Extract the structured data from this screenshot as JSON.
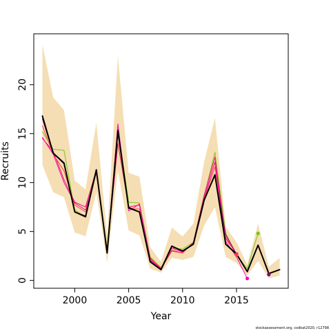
{
  "chart_data": {
    "type": "line",
    "title": "",
    "xlabel": "Year",
    "ylabel": "Recruits",
    "xlim": [
      1996.2,
      2019.8
    ],
    "ylim": [
      -0.8,
      25.2
    ],
    "x_ticks": [
      2000,
      2005,
      2010,
      2015
    ],
    "y_ticks": [
      0,
      5,
      10,
      15,
      20
    ],
    "grid": false,
    "legend": "none",
    "band": {
      "color": "#F5DEB3",
      "x": [
        1997,
        1998,
        1999,
        2000,
        2001,
        2002,
        2003,
        2004,
        2005,
        2006,
        2007,
        2008,
        2009,
        2010,
        2011,
        2012,
        2013,
        2014,
        2015,
        2016,
        2017,
        2018,
        2019
      ],
      "lower": [
        11.8,
        9.0,
        8.5,
        4.9,
        4.5,
        9.0,
        1.8,
        11.2,
        5.1,
        4.6,
        1.2,
        0.8,
        2.3,
        2.1,
        2.4,
        5.6,
        7.5,
        2.4,
        1.8,
        0.5,
        2.0,
        0.2,
        0.5
      ],
      "upper": [
        24.1,
        18.7,
        17.4,
        10.2,
        9.3,
        16.1,
        4.6,
        22.9,
        11.0,
        10.6,
        3.4,
        1.9,
        5.4,
        4.5,
        5.8,
        12.1,
        16.6,
        5.5,
        3.9,
        1.6,
        5.8,
        1.4,
        2.3
      ]
    },
    "series": [
      {
        "color": "#000000",
        "width": 2,
        "x": [
          1997,
          1998,
          1999,
          2000,
          2001,
          2002,
          2003,
          2004,
          2005,
          2006,
          2007,
          2008,
          2009,
          2010,
          2011,
          2012,
          2013,
          2014,
          2015,
          2016,
          2017,
          2018,
          2019
        ],
        "values": [
          16.8,
          13.0,
          12.0,
          7.0,
          6.5,
          11.3,
          2.8,
          15.3,
          7.4,
          7.0,
          1.9,
          1.1,
          3.5,
          3.0,
          3.7,
          8.2,
          10.8,
          3.7,
          2.7,
          0.9,
          3.6,
          0.7,
          1.1
        ]
      },
      {
        "color": "#7FC31C",
        "width": 1,
        "x": [
          1997,
          1998,
          1999,
          2000,
          2001,
          2002,
          2003,
          2004,
          2005,
          2006,
          2007,
          2008,
          2009,
          2010,
          2011,
          2012,
          2013,
          2014,
          2015,
          2016,
          2017
        ],
        "values": [
          15.2,
          13.4,
          13.3,
          7.2,
          6.5,
          11.0,
          3.3,
          15.6,
          8.0,
          7.9,
          2.4,
          1.3,
          3.3,
          3.2,
          3.9,
          8.6,
          13.1,
          4.8,
          2.6,
          1.2,
          4.8
        ],
        "endpoint": true
      },
      {
        "color": "#E0115F",
        "width": 1,
        "x": [
          1997,
          1998,
          1999,
          2000,
          2001,
          2002,
          2003,
          2004,
          2005,
          2006,
          2007,
          2008,
          2009,
          2010,
          2011,
          2012,
          2013,
          2014,
          2015
        ],
        "values": [
          14.5,
          13.2,
          10.3,
          8.0,
          7.5,
          11.3,
          3.0,
          14.0,
          7.5,
          7.7,
          2.3,
          1.2,
          3.0,
          2.8,
          3.9,
          8.7,
          12.6,
          4.3,
          2.7
        ],
        "endpoint": true
      },
      {
        "color": "#FF4040",
        "width": 1,
        "x": [
          1997,
          1998,
          1999,
          2000,
          2001,
          2002,
          2003,
          2004,
          2005,
          2006,
          2007,
          2008,
          2009,
          2010,
          2011,
          2012,
          2013,
          2014,
          2015
        ],
        "values": [
          15.8,
          12.9,
          11.2,
          7.7,
          7.0,
          11.2,
          3.1,
          15.0,
          7.3,
          7.3,
          2.2,
          1.3,
          3.1,
          2.8,
          3.8,
          8.3,
          11.6,
          4.5,
          2.6
        ],
        "endpoint": true
      },
      {
        "color": "#FF00B0",
        "width": 1,
        "x": [
          1997,
          1998,
          1999,
          2000,
          2001,
          2002,
          2003,
          2004,
          2005,
          2006,
          2007,
          2008,
          2009,
          2010,
          2011,
          2012,
          2013,
          2014,
          2015,
          2016
        ],
        "values": [
          14.6,
          12.9,
          10.0,
          7.9,
          7.2,
          11.0,
          3.0,
          16.0,
          7.1,
          7.8,
          2.1,
          1.2,
          3.3,
          2.9,
          3.8,
          8.4,
          12.1,
          4.0,
          2.4,
          0.2
        ],
        "endpoint": true
      },
      {
        "color": "#800080",
        "width": 1,
        "x": [
          1997,
          1998,
          1999,
          2000,
          2001,
          2002,
          2003,
          2004,
          2005,
          2006,
          2007,
          2008,
          2009,
          2010,
          2011,
          2012,
          2013,
          2014,
          2015,
          2016,
          2017,
          2018
        ],
        "values": [
          16.5,
          13.0,
          11.9,
          7.0,
          6.6,
          11.3,
          2.8,
          15.4,
          7.5,
          7.0,
          2.0,
          1.1,
          3.5,
          3.0,
          3.7,
          8.2,
          10.7,
          4.7,
          2.7,
          0.9,
          3.6,
          0.6
        ],
        "endpoint": true
      }
    ]
  },
  "footer": {
    "note": "stockassessment.org, codkat2020, r12798"
  }
}
